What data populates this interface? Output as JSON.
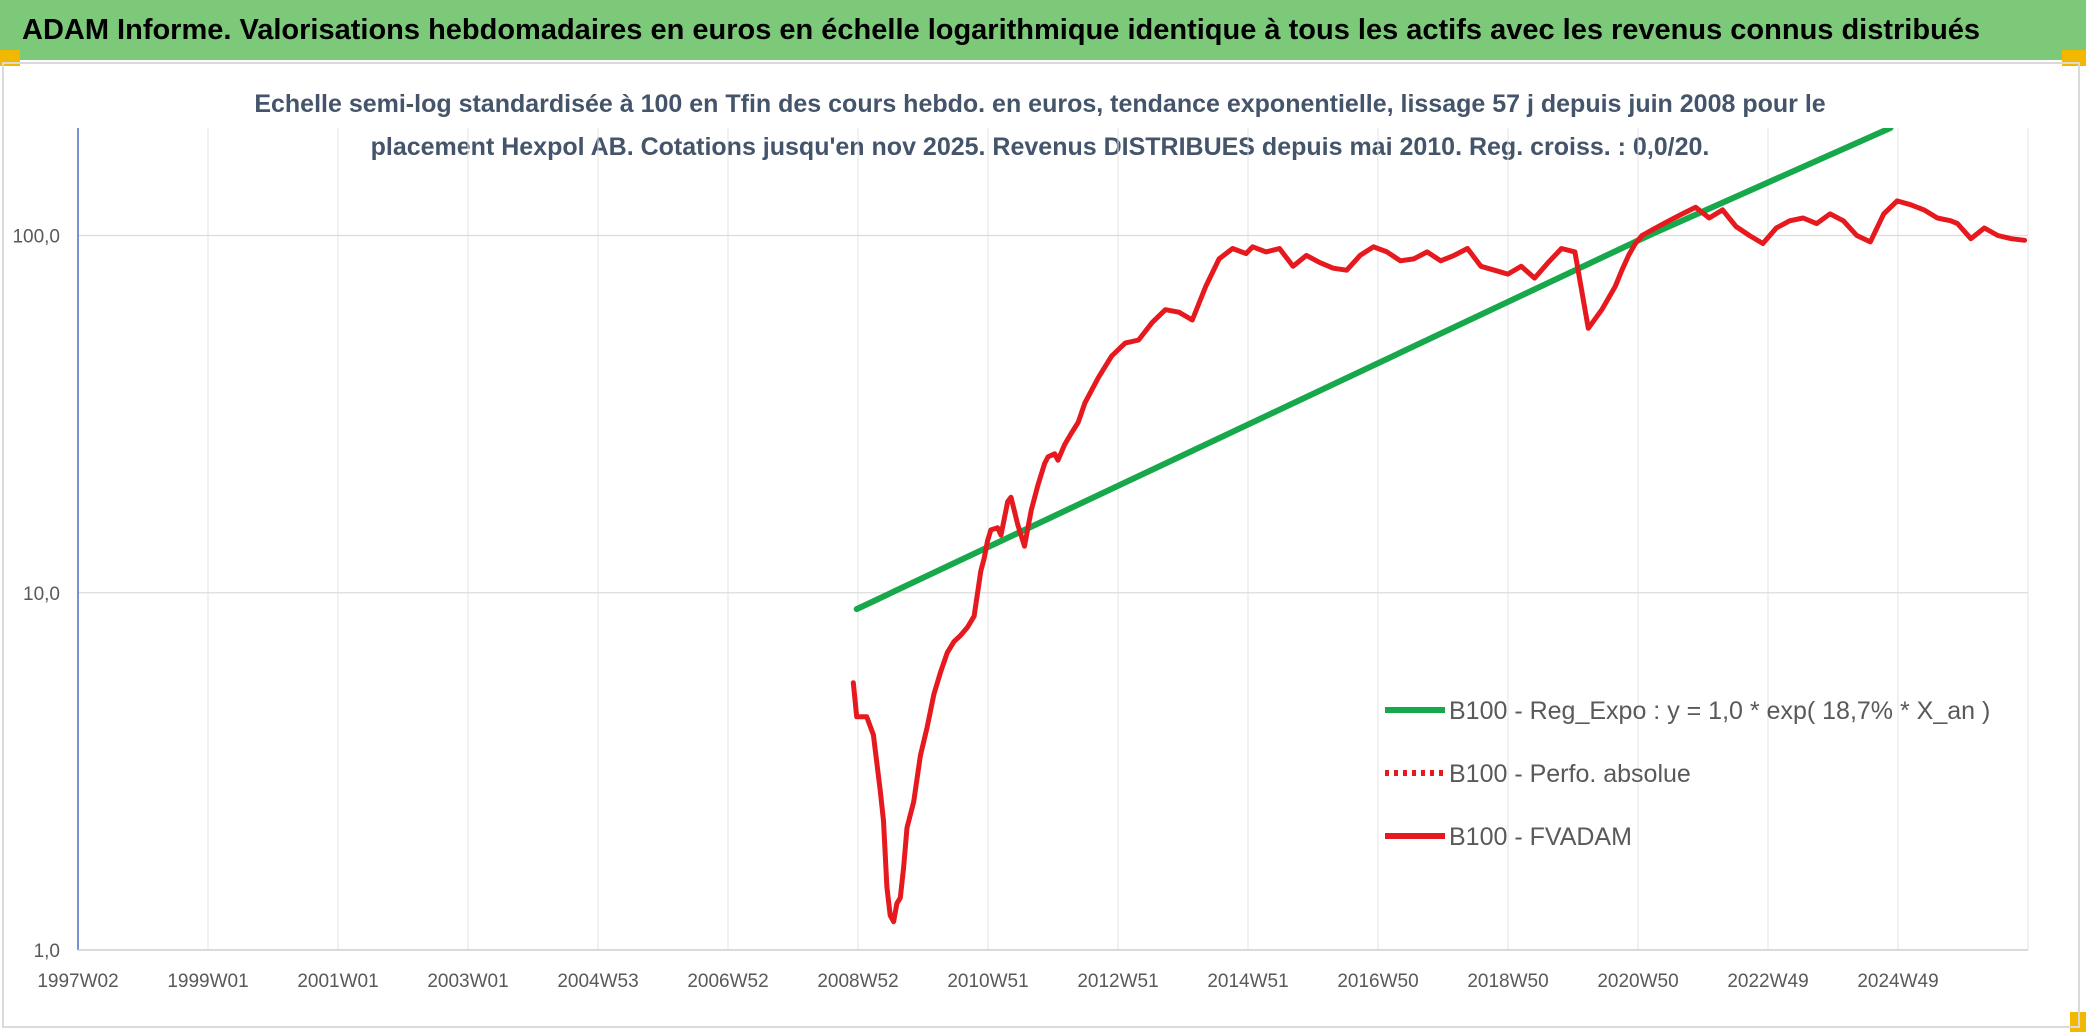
{
  "header": {
    "title": "ADAM Informe. Valorisations hebdomadaires en euros en échelle logarithmique identique à tous les actifs avec les revenus connus distribués"
  },
  "chart_data": {
    "type": "line",
    "title_lines": [
      "Echelle semi-log standardisée à 100 en Tfin des cours hebdo. en euros, tendance exponentielle, lissage 57 j depuis juin 2008 pour le",
      "placement Hexpol AB. Cotations jusqu'en nov 2025. Revenus DISTRIBUES depuis mai 2010. Reg. croiss. : 0,0/20."
    ],
    "x_ticks": [
      "1997W02",
      "1999W01",
      "2001W01",
      "2003W01",
      "2004W53",
      "2006W52",
      "2008W52",
      "2010W51",
      "2012W51",
      "2014W51",
      "2016W50",
      "2018W50",
      "2020W50",
      "2022W49",
      "2024W49"
    ],
    "x_range": [
      1997.0,
      2026.05
    ],
    "y_scale": "log",
    "y_range": [
      1,
      200
    ],
    "y_ticks": [
      {
        "value": 1,
        "label": "1,0"
      },
      {
        "value": 10,
        "label": "10,0"
      },
      {
        "value": 100,
        "label": "100,0"
      }
    ],
    "grid": true,
    "legend_position": "bottom-right",
    "series": [
      {
        "name": "B100 - Reg_Expo : y = 1,0 * exp( 18,7% *  X_an )",
        "color": "#17a84b",
        "style": "solid",
        "x": [
          2008.6,
          2020.4,
          2024.0
        ],
        "y": [
          9.0,
          100,
          200
        ]
      },
      {
        "name": "B100 - Perfo. absolue",
        "color": "#e6191e",
        "style": "dotted",
        "x": [],
        "y": []
      },
      {
        "name": "B100 - FVADAM",
        "color": "#e6191e",
        "style": "solid",
        "x": [
          2008.55,
          2008.6,
          2008.75,
          2008.85,
          2008.95,
          2009.0,
          2009.05,
          2009.1,
          2009.15,
          2009.2,
          2009.25,
          2009.3,
          2009.35,
          2009.45,
          2009.55,
          2009.65,
          2009.75,
          2009.85,
          2009.95,
          2010.05,
          2010.15,
          2010.25,
          2010.35,
          2010.45,
          2010.5,
          2010.55,
          2010.6,
          2010.7,
          2010.75,
          2010.85,
          2010.9,
          2011.0,
          2011.1,
          2011.2,
          2011.3,
          2011.4,
          2011.45,
          2011.55,
          2011.6,
          2011.7,
          2011.8,
          2011.9,
          2012.0,
          2012.2,
          2012.4,
          2012.6,
          2012.8,
          2013.0,
          2013.2,
          2013.4,
          2013.6,
          2013.8,
          2014.0,
          2014.2,
          2014.4,
          2014.5,
          2014.7,
          2014.9,
          2015.1,
          2015.3,
          2015.5,
          2015.7,
          2015.9,
          2016.1,
          2016.3,
          2016.5,
          2016.7,
          2016.9,
          2017.1,
          2017.3,
          2017.5,
          2017.7,
          2017.9,
          2018.1,
          2018.3,
          2018.5,
          2018.7,
          2018.9,
          2019.1,
          2019.3,
          2019.5,
          2019.7,
          2019.9,
          2020.0,
          2020.1,
          2020.2,
          2020.3,
          2020.5,
          2020.7,
          2020.9,
          2021.1,
          2021.3,
          2021.5,
          2021.7,
          2021.9,
          2022.1,
          2022.3,
          2022.5,
          2022.7,
          2022.9,
          2023.1,
          2023.3,
          2023.5,
          2023.7,
          2023.9,
          2024.1,
          2024.3,
          2024.5,
          2024.7,
          2024.9,
          2025.0,
          2025.2,
          2025.4,
          2025.6,
          2025.8,
          2026.0
        ],
        "y": [
          5.6,
          4.5,
          4.5,
          4.0,
          2.8,
          2.3,
          1.5,
          1.25,
          1.2,
          1.35,
          1.4,
          1.7,
          2.2,
          2.6,
          3.5,
          4.2,
          5.2,
          6.0,
          6.8,
          7.3,
          7.6,
          8.0,
          8.6,
          11.5,
          12.5,
          14.0,
          15.0,
          15.2,
          14.5,
          18.0,
          18.5,
          15.5,
          13.5,
          17.0,
          20.0,
          23.0,
          24.0,
          24.5,
          23.5,
          26.0,
          28.0,
          30.0,
          34.0,
          40.0,
          46.0,
          50.0,
          51.0,
          57.0,
          62.0,
          61.0,
          58.0,
          72.0,
          86.0,
          92.0,
          89.0,
          93.0,
          90.0,
          92.0,
          82.0,
          88.0,
          84.0,
          81.0,
          80.0,
          88.0,
          93.0,
          90.0,
          85.0,
          86.0,
          90.0,
          85.0,
          88.0,
          92.0,
          82.0,
          80.0,
          78.0,
          82.0,
          76.0,
          84.0,
          92.0,
          90.0,
          55.0,
          62.0,
          72.0,
          80.0,
          88.0,
          95.0,
          100.0,
          105.0,
          110.0,
          115.0,
          120.0,
          112.0,
          118.0,
          106.0,
          100.0,
          95.0,
          105.0,
          110.0,
          112.0,
          108.0,
          115.0,
          110.0,
          100.0,
          96.0,
          115.0,
          125.0,
          122.0,
          118.0,
          112.0,
          110.0,
          108.0,
          98.0,
          105.0,
          100.0,
          98.0,
          97.0
        ]
      }
    ]
  }
}
